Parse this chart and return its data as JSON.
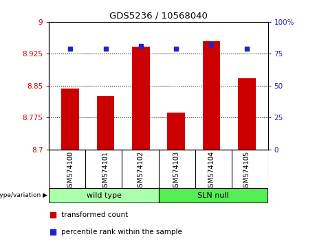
{
  "title": "GDS5236 / 10568040",
  "categories": [
    "GSM574100",
    "GSM574101",
    "GSM574102",
    "GSM574103",
    "GSM574104",
    "GSM574105"
  ],
  "transformed_counts": [
    8.843,
    8.825,
    8.942,
    8.786,
    8.955,
    8.868
  ],
  "percentile_ranks": [
    79,
    79,
    81,
    79,
    82,
    79
  ],
  "ylim_left": [
    8.7,
    9.0
  ],
  "ylim_right": [
    0,
    100
  ],
  "yticks_left": [
    8.7,
    8.775,
    8.85,
    8.925,
    9.0
  ],
  "ytick_labels_left": [
    "8.7",
    "8.775",
    "8.85",
    "8.925",
    "9"
  ],
  "yticks_right": [
    0,
    25,
    50,
    75,
    100
  ],
  "ytick_labels_right": [
    "0",
    "25",
    "50",
    "75",
    "100%"
  ],
  "hlines": [
    8.925,
    8.85,
    8.775
  ],
  "bar_color": "#cc0000",
  "dot_color": "#2222cc",
  "groups": [
    {
      "label": "wild type",
      "indices": [
        0,
        1,
        2
      ],
      "color": "#aaffaa"
    },
    {
      "label": "SLN null",
      "indices": [
        3,
        4,
        5
      ],
      "color": "#55ee55"
    }
  ],
  "group_label": "genotype/variation",
  "legend_items": [
    {
      "label": "transformed count",
      "color": "#cc0000"
    },
    {
      "label": "percentile rank within the sample",
      "color": "#2222cc"
    }
  ],
  "tick_label_color_left": "#cc0000",
  "tick_label_color_right": "#2222cc",
  "xtick_bg": "#c8c8c8",
  "bar_width": 0.5,
  "figsize": [
    4.61,
    3.54
  ],
  "dpi": 100
}
